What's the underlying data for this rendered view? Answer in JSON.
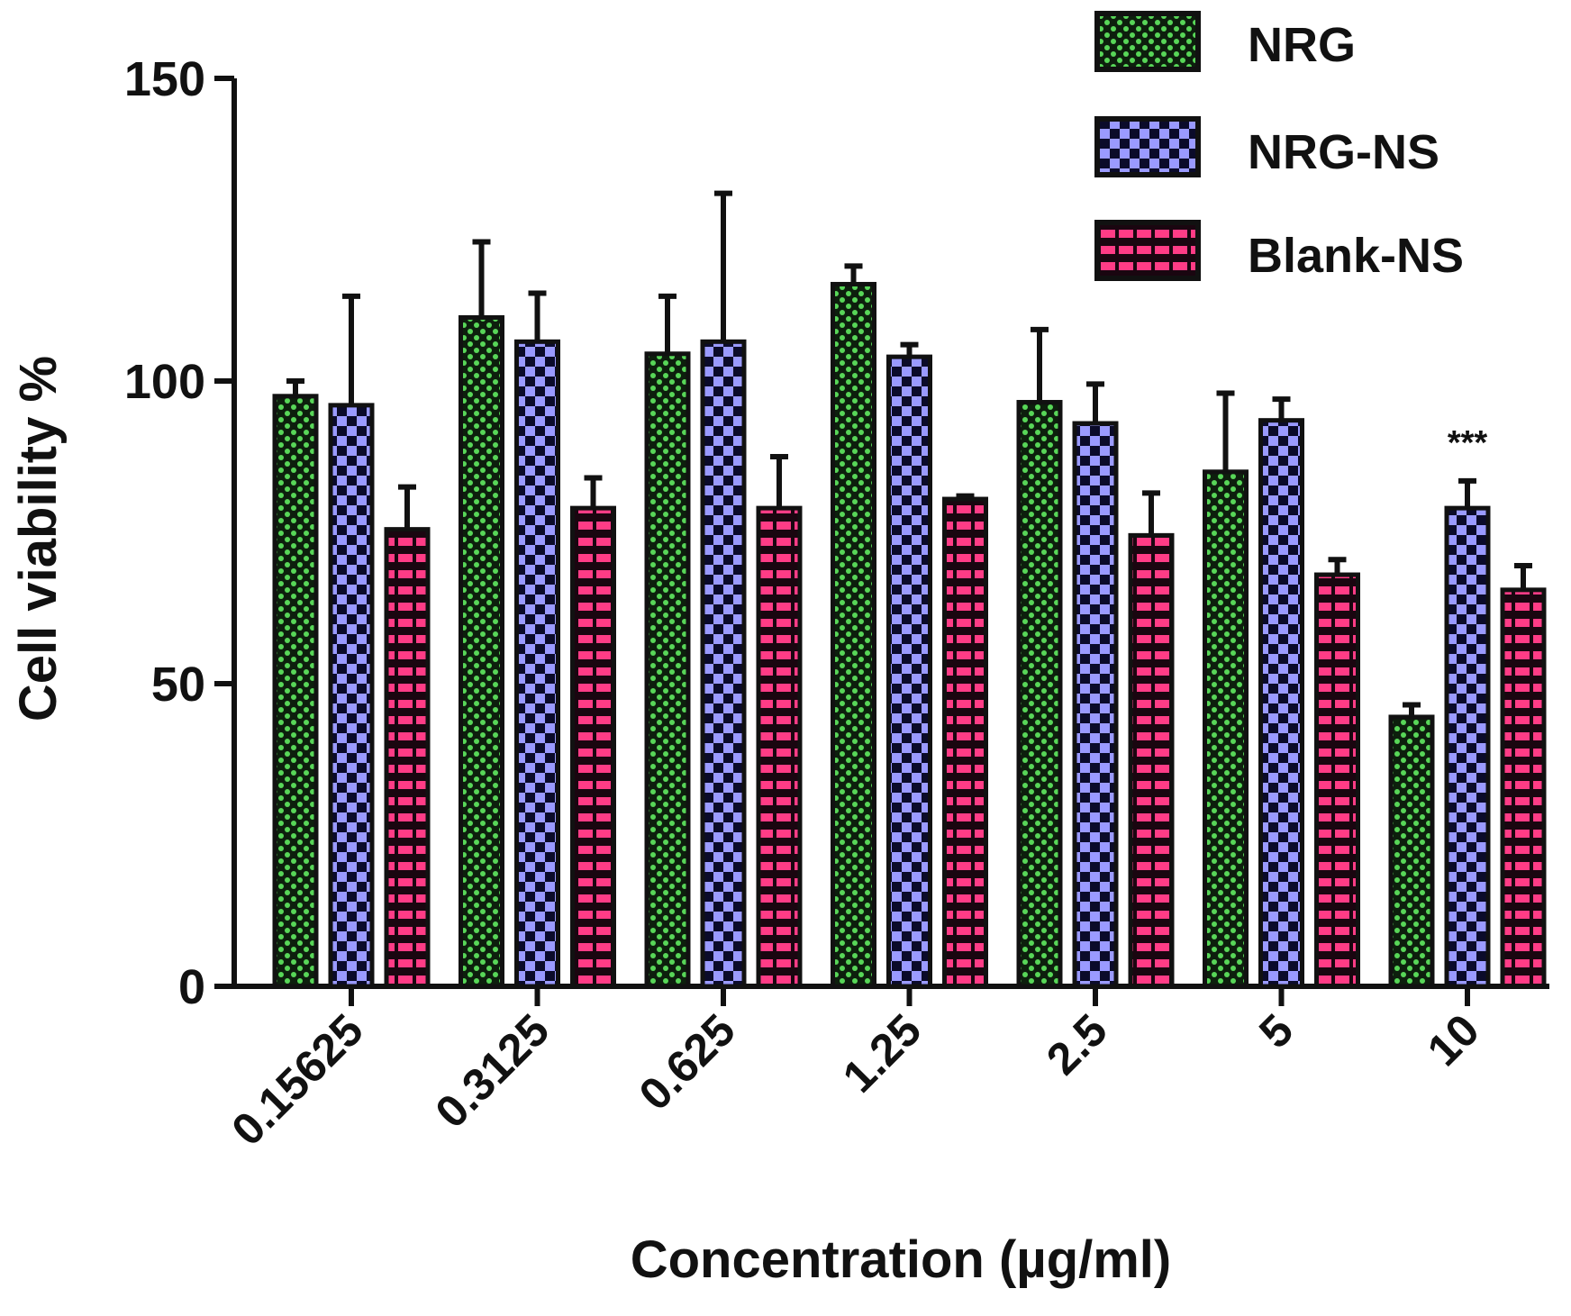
{
  "chart_data": {
    "type": "bar",
    "title": "",
    "xlabel": "Concentration (µg/ml)",
    "ylabel": "Cell viability %",
    "ylim": [
      0,
      150
    ],
    "yticks": [
      "0",
      "50",
      "100",
      "150"
    ],
    "categories": [
      "0.15625",
      "0.3125",
      "0.625",
      "1.25",
      "2.5",
      "5",
      "10"
    ],
    "series": [
      {
        "name": "NRG",
        "color": "#1a8f1a",
        "pattern_color": "#7be07b",
        "values": [
          97.5,
          110.5,
          104.5,
          116,
          96.5,
          85,
          44.5
        ],
        "errors": [
          2.5,
          12.5,
          9.5,
          3,
          12,
          13,
          2
        ]
      },
      {
        "name": "NRG-NS",
        "color": "#7d7df5",
        "pattern_color": "#9a9aff",
        "values": [
          96,
          106.5,
          106.5,
          104,
          93,
          93.5,
          79
        ],
        "errors": [
          18,
          8,
          24.5,
          2,
          6.5,
          3.5,
          4.5
        ]
      },
      {
        "name": "Blank-NS",
        "color": "#d81b6a",
        "pattern_color": "#ff4f93",
        "values": [
          75.5,
          79,
          79,
          80.5,
          74.5,
          68,
          65.5
        ],
        "errors": [
          7,
          5,
          8.5,
          0.5,
          7,
          2.5,
          4
        ]
      }
    ],
    "annotations": [
      {
        "category": "10",
        "series": "NRG-NS",
        "text": "***"
      }
    ],
    "legend": "top-right",
    "grid": false
  }
}
